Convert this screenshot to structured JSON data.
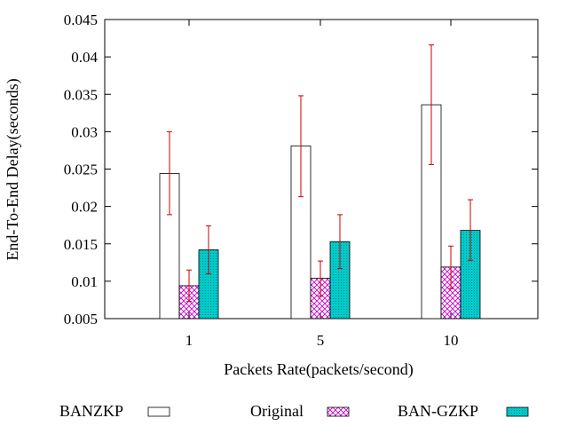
{
  "chart_data": {
    "type": "bar",
    "title": "",
    "xlabel": "Packets Rate(packets/second)",
    "ylabel": "End-To-End Delay(seconds)",
    "ylim": [
      0.005,
      0.045
    ],
    "yticks": [
      "0.005",
      "0.01",
      "0.015",
      "0.02",
      "0.025",
      "0.03",
      "0.035",
      "0.04",
      "0.045"
    ],
    "categories": [
      "1",
      "5",
      "10"
    ],
    "grid": false,
    "legend_position": "bottom",
    "series": [
      {
        "name": "BANZKP",
        "pattern": "none",
        "values": [
          0.0244,
          0.0281,
          0.0336
        ],
        "err_low": [
          0.0189,
          0.0213,
          0.0256
        ],
        "err_high": [
          0.03,
          0.0348,
          0.0416
        ]
      },
      {
        "name": "Original",
        "pattern": "crosshatch",
        "values": [
          0.0094,
          0.0104,
          0.0119
        ],
        "err_low": [
          0.0073,
          0.008,
          0.009
        ],
        "err_high": [
          0.0115,
          0.0127,
          0.0147
        ]
      },
      {
        "name": "BAN-GZKP",
        "pattern": "dots",
        "values": [
          0.0142,
          0.0153,
          0.0168
        ],
        "err_low": [
          0.011,
          0.0117,
          0.0128
        ],
        "err_high": [
          0.0174,
          0.0189,
          0.0209
        ]
      }
    ],
    "colors": {
      "axis": "#000000",
      "error_bar": "#cc0000",
      "original_pattern": "#cc00cc",
      "bangzkp_fill": "#00cccc",
      "bangzkp_dot": "#008080"
    }
  }
}
